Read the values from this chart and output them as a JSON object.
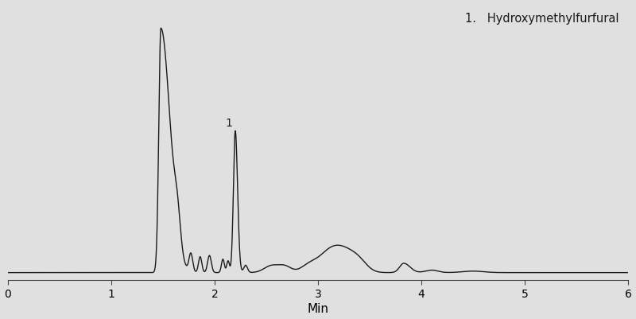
{
  "background_color": "#e0e0e0",
  "plot_bg_color": "#e0e0e0",
  "line_color": "#1a1a1a",
  "line_width": 1.0,
  "xlabel": "Min",
  "xlabel_fontsize": 11,
  "tick_fontsize": 10,
  "xlim": [
    0,
    6
  ],
  "ylim": [
    -0.03,
    1.1
  ],
  "xticks": [
    0,
    1,
    2,
    3,
    4,
    5,
    6
  ],
  "legend_text": "1.   Hydroxymethylfurfural",
  "legend_fontsize": 10.5,
  "peak_label": "1",
  "peak_label_fontsize": 10
}
